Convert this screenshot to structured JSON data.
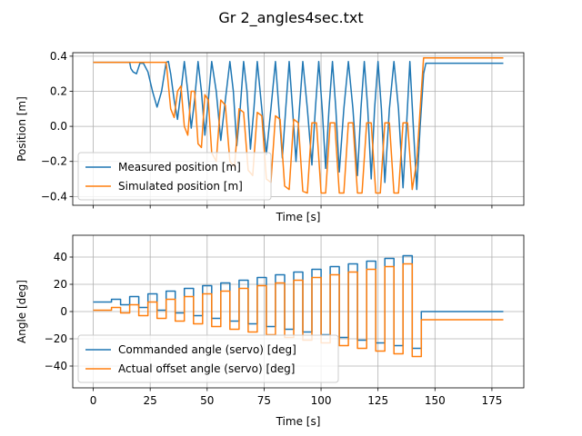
{
  "chart_data": [
    {
      "type": "line",
      "suptitle": "Gr 2_angles4sec.txt",
      "title": "",
      "xlabel": "Time [s]",
      "ylabel": "Position [m]",
      "xlim": [
        -9,
        189
      ],
      "ylim": [
        -0.45,
        0.42
      ],
      "xticks": [
        0,
        25,
        50,
        75,
        100,
        125,
        150,
        175
      ],
      "xtick_labels": [
        "",
        "",
        "",
        "",
        "",
        "",
        "",
        ""
      ],
      "yticks": [
        -0.4,
        -0.2,
        0.0,
        0.2,
        0.4
      ],
      "ytick_labels": [
        "−0.4",
        "−0.2",
        "0.0",
        "0.2",
        "0.4"
      ],
      "grid": true,
      "legend_position": "lower-left",
      "series": [
        {
          "name": "Measured position [m]",
          "color": "#1f77b4",
          "x": [
            0,
            16,
            16.5,
            17.5,
            19,
            20.5,
            22,
            24,
            26,
            28,
            30,
            32,
            33,
            34,
            35.5,
            37,
            38.5,
            40,
            41.5,
            43,
            44.5,
            46,
            47.5,
            49,
            50.5,
            52,
            54,
            56,
            58,
            60,
            61.5,
            63,
            64.5,
            66,
            67.5,
            69,
            70.5,
            72,
            74,
            76,
            78,
            80,
            81.5,
            83,
            84.5,
            86,
            87.5,
            89,
            90.5,
            92,
            94,
            96,
            97.5,
            99,
            100.5,
            102,
            103.5,
            105,
            106.5,
            108,
            110,
            112,
            114,
            116,
            117.5,
            119,
            120.5,
            122,
            123.5,
            125,
            126.5,
            128,
            130,
            132,
            134,
            136,
            137.5,
            139,
            140.5,
            142,
            143.5,
            145,
            146,
            150,
            180
          ],
          "y": [
            0.365,
            0.365,
            0.33,
            0.31,
            0.3,
            0.36,
            0.36,
            0.31,
            0.2,
            0.11,
            0.2,
            0.365,
            0.37,
            0.3,
            0.15,
            0.04,
            0.2,
            0.37,
            0.2,
            -0.01,
            0.15,
            0.37,
            0.2,
            -0.05,
            0.15,
            0.37,
            0.2,
            -0.08,
            0.15,
            0.37,
            0.2,
            -0.11,
            0.1,
            0.37,
            0.2,
            -0.13,
            0.1,
            0.37,
            0.1,
            -0.16,
            0.1,
            0.37,
            0.1,
            -0.18,
            0.1,
            0.37,
            0.1,
            -0.2,
            0.1,
            0.37,
            0.1,
            -0.22,
            0.1,
            0.37,
            0.1,
            -0.24,
            0.1,
            0.37,
            0.1,
            -0.26,
            0.1,
            0.37,
            0.1,
            -0.28,
            0.1,
            0.37,
            0.1,
            -0.3,
            0.1,
            0.37,
            0.1,
            -0.32,
            0.1,
            0.37,
            0.1,
            -0.35,
            0.0,
            0.37,
            0.0,
            -0.36,
            0.0,
            0.3,
            0.36,
            0.36,
            0.36
          ]
        },
        {
          "name": "Simulated position [m]",
          "color": "#ff7f0e",
          "x": [
            0,
            32,
            32.5,
            34,
            35.5,
            37,
            38.5,
            40,
            41.5,
            43,
            44.5,
            46,
            47.5,
            49,
            50.5,
            52,
            54,
            56,
            58,
            60,
            62,
            64,
            66,
            68,
            70,
            72,
            74,
            76,
            78,
            80,
            82,
            84,
            86,
            88,
            90,
            92,
            94,
            96,
            98,
            100,
            102,
            104,
            106,
            108,
            110,
            112,
            114,
            116,
            118,
            120,
            122,
            124,
            126,
            128,
            130,
            132,
            134,
            136,
            138,
            140,
            142,
            144,
            145,
            146,
            150,
            180
          ],
          "y": [
            0.365,
            0.365,
            0.3,
            0.1,
            0.05,
            0.2,
            0.23,
            0.0,
            -0.05,
            0.2,
            0.2,
            -0.1,
            -0.12,
            0.18,
            0.15,
            -0.15,
            -0.2,
            0.15,
            0.12,
            -0.2,
            -0.23,
            0.1,
            0.08,
            -0.25,
            -0.28,
            0.08,
            0.06,
            -0.3,
            -0.32,
            0.06,
            0.04,
            -0.34,
            -0.36,
            0.04,
            0.02,
            -0.37,
            -0.38,
            0.02,
            0.02,
            -0.38,
            -0.38,
            0.02,
            0.02,
            -0.38,
            -0.38,
            0.02,
            0.02,
            -0.38,
            -0.38,
            0.02,
            0.02,
            -0.38,
            -0.38,
            0.02,
            0.02,
            -0.38,
            -0.38,
            0.02,
            0.02,
            -0.36,
            -0.2,
            0.2,
            0.39,
            0.39,
            0.39,
            0.39
          ]
        }
      ]
    },
    {
      "type": "line",
      "title": "",
      "xlabel": "Time [s]",
      "ylabel": "Angle [deg]",
      "xlim": [
        -9,
        189
      ],
      "ylim": [
        -56,
        56
      ],
      "xticks": [
        0,
        25,
        50,
        75,
        100,
        125,
        150,
        175
      ],
      "xtick_labels": [
        "0",
        "25",
        "50",
        "75",
        "100",
        "125",
        "150",
        "175"
      ],
      "yticks": [
        -40,
        -20,
        0,
        20,
        40
      ],
      "ytick_labels": [
        "−40",
        "−20",
        "0",
        "20",
        "40"
      ],
      "grid": true,
      "legend_position": "lower-left",
      "series": [
        {
          "name": "Commanded angle (servo) [deg]",
          "color": "#1f77b4",
          "x": [
            0,
            8,
            8,
            12,
            12,
            16,
            16,
            20,
            20,
            24,
            24,
            28,
            28,
            32,
            32,
            36,
            36,
            40,
            40,
            44,
            44,
            48,
            48,
            52,
            52,
            56,
            56,
            60,
            60,
            64,
            64,
            68,
            68,
            72,
            72,
            76,
            76,
            80,
            80,
            84,
            84,
            88,
            88,
            92,
            92,
            96,
            96,
            100,
            100,
            104,
            104,
            108,
            108,
            112,
            112,
            116,
            116,
            120,
            120,
            124,
            124,
            128,
            128,
            132,
            132,
            136,
            136,
            140,
            140,
            144,
            144,
            180
          ],
          "y": [
            7,
            7,
            9,
            9,
            5,
            5,
            11,
            11,
            3,
            3,
            13,
            13,
            1,
            1,
            15,
            15,
            -1,
            -1,
            17,
            17,
            -3,
            -3,
            19,
            19,
            -5,
            -5,
            21,
            21,
            -7,
            -7,
            23,
            23,
            -9,
            -9,
            25,
            25,
            -11,
            -11,
            27,
            27,
            -13,
            -13,
            29,
            29,
            -15,
            -15,
            31,
            31,
            -17,
            -17,
            33,
            33,
            -19,
            -19,
            35,
            35,
            -21,
            -21,
            37,
            37,
            -23,
            -23,
            39,
            39,
            -25,
            -25,
            41,
            41,
            -27,
            -27,
            0,
            0
          ]
        },
        {
          "name": "Actual offset angle (servo) [deg]",
          "color": "#ff7f0e",
          "x": [
            0,
            8,
            8,
            12,
            12,
            16,
            16,
            20,
            20,
            24,
            24,
            28,
            28,
            32,
            32,
            36,
            36,
            40,
            40,
            44,
            44,
            48,
            48,
            52,
            52,
            56,
            56,
            60,
            60,
            64,
            64,
            68,
            68,
            72,
            72,
            76,
            76,
            80,
            80,
            84,
            84,
            88,
            88,
            92,
            92,
            96,
            96,
            100,
            100,
            104,
            104,
            108,
            108,
            112,
            112,
            116,
            116,
            120,
            120,
            124,
            124,
            128,
            128,
            132,
            132,
            136,
            136,
            140,
            140,
            144,
            144,
            180
          ],
          "y": [
            1,
            1,
            3,
            3,
            -1,
            -1,
            5,
            5,
            -3,
            -3,
            7,
            7,
            -5,
            -5,
            9,
            9,
            -7,
            -7,
            11,
            11,
            -9,
            -9,
            13,
            13,
            -11,
            -11,
            15,
            15,
            -13,
            -13,
            17,
            17,
            -15,
            -15,
            19,
            19,
            -17,
            -17,
            21,
            21,
            -19,
            -19,
            23,
            23,
            -21,
            -21,
            25,
            25,
            -23,
            -23,
            27,
            27,
            -25,
            -25,
            29,
            29,
            -27,
            -27,
            31,
            31,
            -29,
            -29,
            33,
            33,
            -31,
            -31,
            35,
            35,
            -33,
            -33,
            -6,
            -6
          ]
        }
      ]
    }
  ]
}
